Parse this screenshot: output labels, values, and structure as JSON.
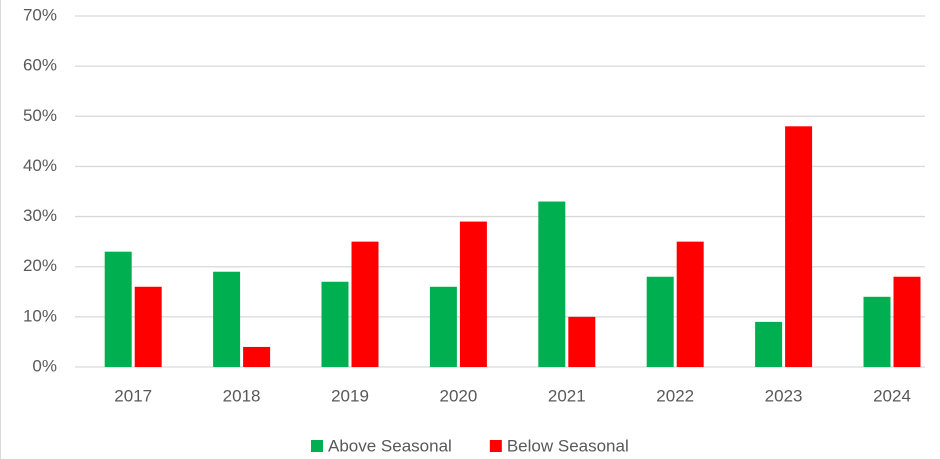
{
  "chart_data": {
    "type": "bar",
    "categories": [
      "2017",
      "2018",
      "2019",
      "2020",
      "2021",
      "2022",
      "2023",
      "2024"
    ],
    "series": [
      {
        "name": "Above Seasonal",
        "color": "#00b050",
        "values": [
          23,
          19,
          17,
          16,
          33,
          18,
          9,
          14
        ]
      },
      {
        "name": "Below Seasonal",
        "color": "#ff0000",
        "values": [
          16,
          4,
          25,
          29,
          10,
          25,
          48,
          18
        ]
      }
    ],
    "ylim": [
      0,
      70
    ],
    "yticks": [
      {
        "value": 0,
        "label": "0%"
      },
      {
        "value": 10,
        "label": "10%"
      },
      {
        "value": 20,
        "label": "20%"
      },
      {
        "value": 30,
        "label": "30%"
      },
      {
        "value": 40,
        "label": "40%"
      },
      {
        "value": 50,
        "label": "50%"
      },
      {
        "value": 60,
        "label": "60%"
      },
      {
        "value": 70,
        "label": "70%"
      }
    ],
    "grid": true,
    "legend": "bottom"
  }
}
